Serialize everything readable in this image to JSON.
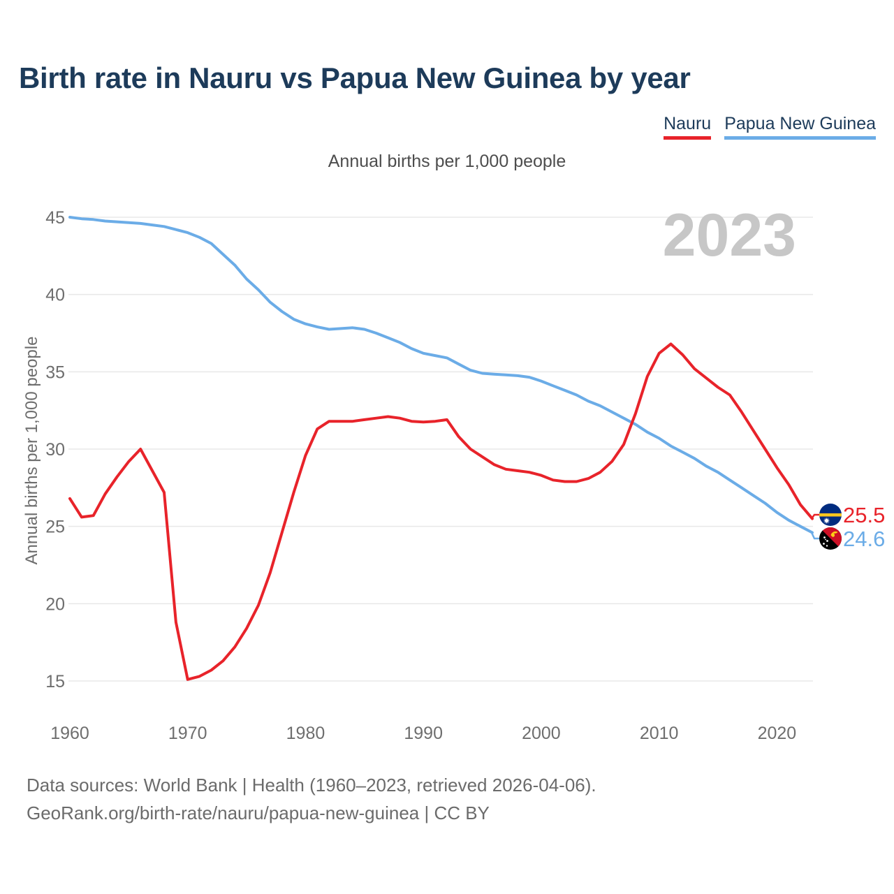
{
  "page": {
    "background": "#ffffff"
  },
  "header": {
    "title": "Birth rate in Nauru vs Papua New Guinea by year",
    "subtitle": "Annual births per 1,000 people",
    "legend": [
      {
        "label": "Nauru",
        "color": "#e8232a"
      },
      {
        "label": "Papua New Guinea",
        "color": "#6bace7"
      }
    ]
  },
  "chart_data": {
    "type": "line",
    "title": "Birth rate in Nauru vs Papua New Guinea by year",
    "subtitle": "Annual births per 1,000 people",
    "ylabel": "Annual births per 1,000 people",
    "watermark": "2023",
    "grid": true,
    "legend_position": "top-right",
    "x_range": [
      1960,
      2023
    ],
    "xticks": [
      1960,
      1970,
      1980,
      1990,
      2000,
      2010,
      2020
    ],
    "yticks": [
      15,
      20,
      25,
      30,
      35,
      40,
      45
    ],
    "ylim": [
      15,
      45
    ],
    "series": [
      {
        "name": "Papua New Guinea",
        "color": "#6bace7",
        "end_label": "24.6",
        "values": [
          45.0,
          44.9,
          44.85,
          44.75,
          44.7,
          44.65,
          44.6,
          44.5,
          44.4,
          44.2,
          44.0,
          43.7,
          43.3,
          42.6,
          41.9,
          41.0,
          40.3,
          39.5,
          38.9,
          38.4,
          38.1,
          37.9,
          37.75,
          37.8,
          37.85,
          37.75,
          37.5,
          37.2,
          36.9,
          36.5,
          36.2,
          36.05,
          35.9,
          35.5,
          35.1,
          34.9,
          34.85,
          34.8,
          34.75,
          34.65,
          34.4,
          34.1,
          33.8,
          33.5,
          33.1,
          32.8,
          32.4,
          32.0,
          31.6,
          31.1,
          30.7,
          30.2,
          29.8,
          29.4,
          28.9,
          28.5,
          28.0,
          27.5,
          27.0,
          26.5,
          25.9,
          25.4,
          25.0,
          24.6
        ]
      },
      {
        "name": "Nauru",
        "color": "#e8232a",
        "end_label": "25.5",
        "values": [
          26.8,
          25.6,
          25.7,
          27.1,
          28.2,
          29.2,
          30.0,
          28.6,
          27.2,
          18.8,
          15.1,
          15.3,
          15.7,
          16.3,
          17.2,
          18.4,
          19.9,
          22.0,
          24.6,
          27.2,
          29.6,
          31.3,
          31.8,
          31.8,
          31.8,
          31.9,
          32.0,
          32.1,
          32.0,
          31.8,
          31.75,
          31.8,
          31.9,
          30.8,
          30.0,
          29.5,
          29.0,
          28.7,
          28.6,
          28.5,
          28.3,
          28.0,
          27.9,
          27.9,
          28.1,
          28.5,
          29.2,
          30.3,
          32.3,
          34.7,
          36.2,
          36.8,
          36.1,
          35.2,
          34.6,
          34.0,
          33.5,
          32.4,
          31.2,
          30.0,
          28.8,
          27.7,
          26.4,
          25.5
        ]
      }
    ]
  },
  "flags": {
    "nauru_blue": "#002b7f",
    "nauru_gold": "#ffc61e",
    "star_white": "#ffffff",
    "png_red": "#ce1126",
    "png_black": "#000000",
    "png_gold": "#fcd116"
  },
  "footer": {
    "line1": "Data sources: World Bank | Health (1960–2023, retrieved 2026-04-06).",
    "line2": "GeoRank.org/birth-rate/nauru/papua-new-guinea | CC BY"
  }
}
